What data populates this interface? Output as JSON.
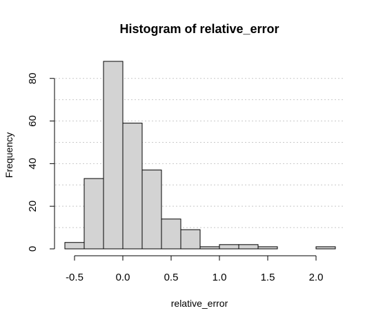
{
  "chart_data": {
    "type": "bar",
    "title": "Histogram of relative_error",
    "xlabel": "relative_error",
    "ylabel": "Frequency",
    "bin_edges": [
      -0.6,
      -0.4,
      -0.2,
      0.0,
      0.2,
      0.4,
      0.6,
      0.8,
      1.0,
      1.2,
      1.4,
      1.6,
      1.8,
      2.0,
      2.2
    ],
    "values": [
      3,
      33,
      88,
      59,
      37,
      14,
      9,
      1,
      2,
      2,
      1,
      0,
      0,
      1
    ],
    "xlim": [
      -0.6,
      2.2
    ],
    "ylim": [
      0,
      88
    ],
    "x_ticks": [
      -0.5,
      0.0,
      0.5,
      1.0,
      1.5,
      2.0
    ],
    "x_tick_labels": [
      "-0.5",
      "0.0",
      "0.5",
      "1.0",
      "1.5",
      "2.0"
    ],
    "y_ticks": [
      0,
      20,
      40,
      60,
      80
    ],
    "y_tick_labels": [
      "0",
      "20",
      "40",
      "60",
      "80"
    ],
    "grid": true,
    "bar_color": "#d3d3d3"
  }
}
